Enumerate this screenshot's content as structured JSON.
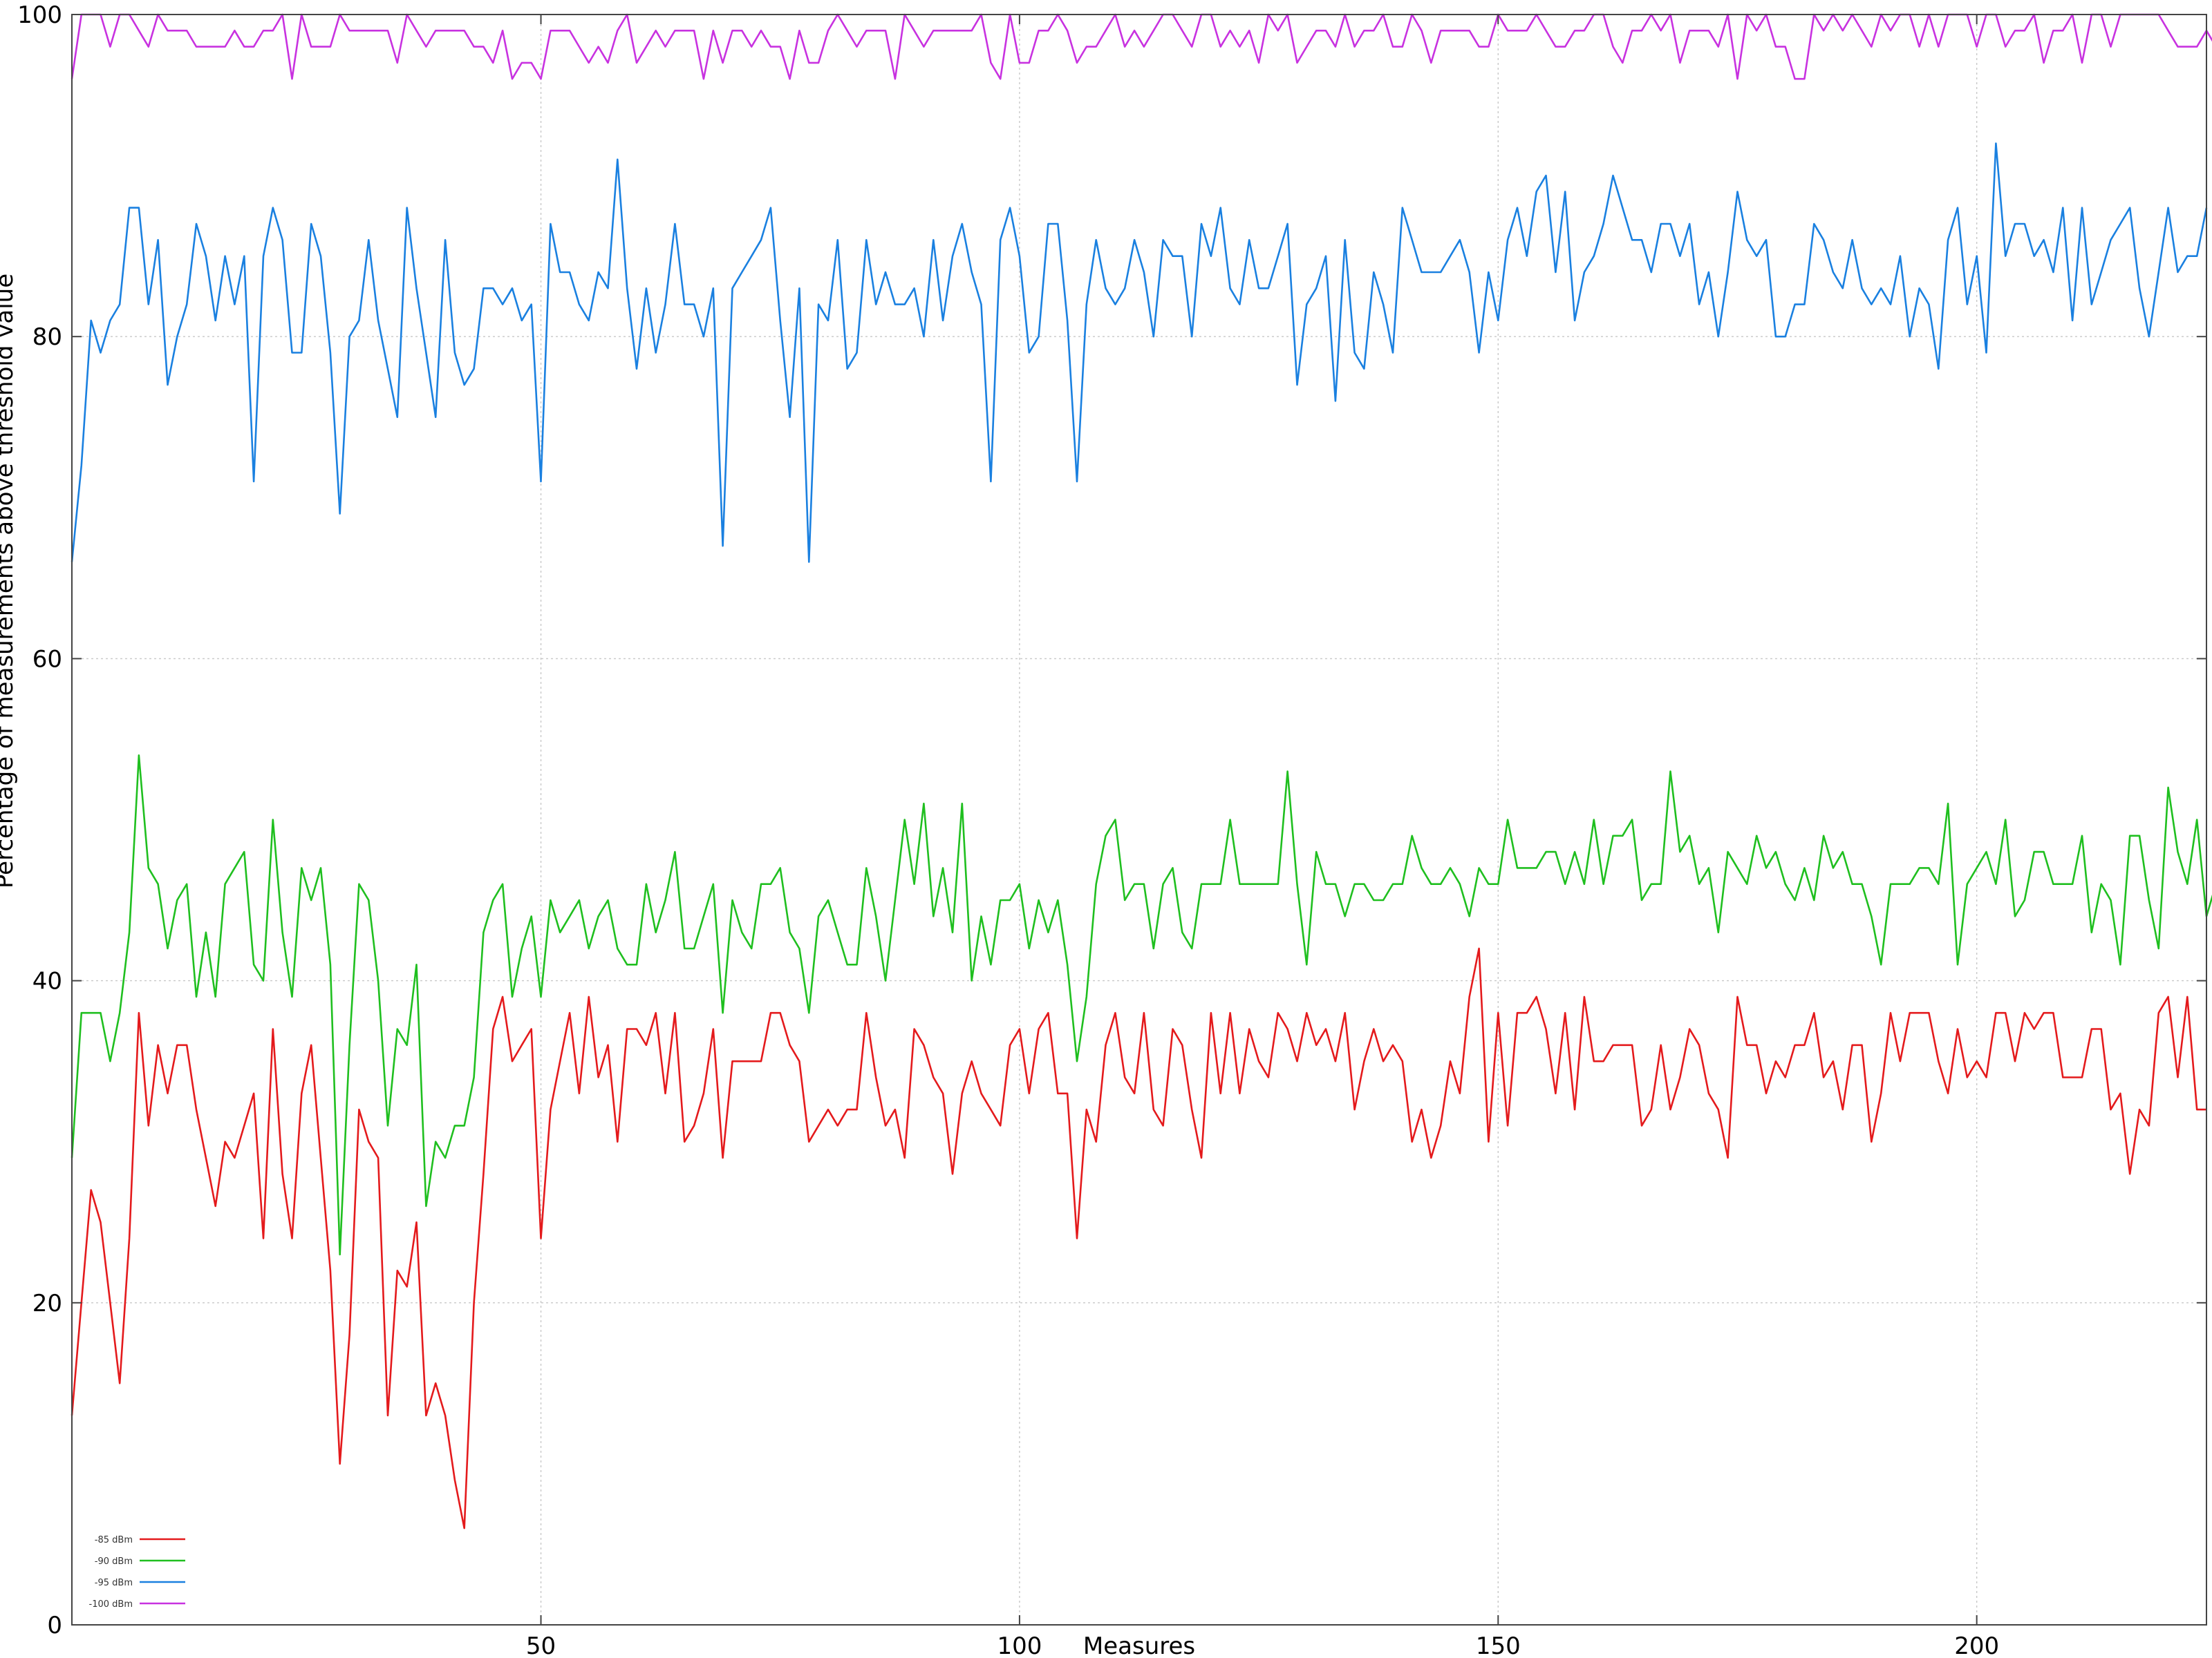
{
  "chart_data": {
    "type": "line",
    "title": "",
    "xlabel": "Measures",
    "ylabel": "Percentage of measurements above threshold value",
    "xlim": [
      1,
      224
    ],
    "ylim": [
      0,
      100
    ],
    "x_ticks": [
      50,
      100,
      150,
      200
    ],
    "y_ticks": [
      0,
      20,
      40,
      60,
      80,
      100
    ],
    "grid": true,
    "legend_position": "bottom-left",
    "series": [
      {
        "name": "-85 dBm",
        "color": "#e41a1c",
        "values": [
          13,
          20,
          27,
          25,
          20,
          15,
          24,
          38,
          31,
          36,
          33,
          36,
          36,
          32,
          29,
          26,
          30,
          29,
          31,
          33,
          24,
          37,
          28,
          24,
          33,
          36,
          29,
          22,
          10,
          18,
          32,
          30,
          29,
          13,
          22,
          21,
          25,
          13,
          15,
          13,
          9,
          6,
          20,
          28,
          37,
          39,
          35,
          36,
          37,
          24,
          32,
          35,
          38,
          33,
          39,
          34,
          36,
          30,
          37,
          37,
          36,
          38,
          33,
          38,
          30,
          31,
          33,
          37,
          29,
          35,
          35,
          35,
          35,
          38,
          38,
          36,
          35,
          30,
          31,
          32,
          31,
          32,
          32,
          38,
          34,
          31,
          32,
          29,
          37,
          36,
          34,
          33,
          28,
          33,
          35,
          33,
          32,
          31,
          36,
          37,
          33,
          37,
          38,
          33,
          33,
          24,
          32,
          30,
          36,
          38,
          34,
          33,
          38,
          32,
          31,
          37,
          36,
          32,
          29,
          38,
          33,
          38,
          33,
          37,
          35,
          34,
          38,
          37,
          35,
          38,
          36,
          37,
          35,
          38,
          32,
          35,
          37,
          35,
          36,
          35,
          30,
          32,
          29,
          31,
          35,
          33,
          39,
          42,
          30,
          38,
          31,
          38,
          38,
          39,
          37,
          33,
          38,
          32,
          39,
          35,
          35,
          36,
          36,
          36,
          31,
          32,
          36,
          32,
          34,
          37,
          36,
          33,
          32,
          29,
          39,
          36,
          36,
          33,
          35,
          34,
          36,
          36,
          38,
          34,
          35,
          32,
          36,
          36,
          30,
          33,
          38,
          35,
          38,
          38,
          38,
          35,
          33,
          37,
          34,
          35,
          34,
          38,
          38,
          35,
          38,
          37,
          38,
          38,
          34,
          34,
          34,
          37,
          37,
          32,
          33,
          28,
          32,
          31,
          38,
          39,
          34,
          39,
          32,
          32
        ]
      },
      {
        "name": "-90 dBm",
        "color": "#1fbf1f",
        "values": [
          29,
          38,
          38,
          38,
          35,
          38,
          43,
          54,
          47,
          46,
          42,
          45,
          46,
          39,
          43,
          39,
          46,
          47,
          48,
          41,
          40,
          50,
          43,
          39,
          47,
          45,
          47,
          41,
          23,
          36,
          46,
          45,
          40,
          31,
          37,
          36,
          41,
          26,
          30,
          29,
          31,
          31,
          34,
          43,
          45,
          46,
          39,
          42,
          44,
          39,
          45,
          43,
          44,
          45,
          42,
          44,
          45,
          42,
          41,
          41,
          46,
          43,
          45,
          48,
          42,
          42,
          44,
          46,
          38,
          45,
          43,
          42,
          46,
          46,
          47,
          43,
          42,
          38,
          44,
          45,
          43,
          41,
          41,
          47,
          44,
          40,
          45,
          50,
          46,
          51,
          44,
          47,
          43,
          51,
          40,
          44,
          41,
          45,
          45,
          46,
          42,
          45,
          43,
          45,
          41,
          35,
          39,
          46,
          49,
          50,
          45,
          46,
          46,
          42,
          46,
          47,
          43,
          42,
          46,
          46,
          46,
          50,
          46,
          46,
          46,
          46,
          46,
          53,
          46,
          41,
          48,
          46,
          46,
          44,
          46,
          46,
          45,
          45,
          46,
          46,
          49,
          47,
          46,
          46,
          47,
          46,
          44,
          47,
          46,
          46,
          50,
          47,
          47,
          47,
          48,
          48,
          46,
          48,
          46,
          50,
          46,
          49,
          49,
          50,
          45,
          46,
          46,
          53,
          48,
          49,
          46,
          47,
          43,
          48,
          47,
          46,
          49,
          47,
          48,
          46,
          45,
          47,
          45,
          49,
          47,
          48,
          46,
          46,
          44,
          41,
          46,
          46,
          46,
          47,
          47,
          46,
          51,
          41,
          46,
          47,
          48,
          46,
          50,
          44,
          45,
          48,
          48,
          46,
          46,
          46,
          49,
          43,
          46,
          45,
          41,
          49,
          49,
          45,
          42,
          52,
          48,
          46,
          50,
          44,
          46
        ]
      },
      {
        "name": "-95 dBm",
        "color": "#1a80e0",
        "values": [
          66,
          72,
          81,
          79,
          81,
          82,
          88,
          88,
          82,
          86,
          77,
          80,
          82,
          87,
          85,
          81,
          85,
          82,
          85,
          71,
          85,
          88,
          86,
          79,
          79,
          87,
          85,
          79,
          69,
          80,
          81,
          86,
          81,
          78,
          75,
          88,
          83,
          79,
          75,
          86,
          79,
          77,
          78,
          83,
          83,
          82,
          83,
          81,
          82,
          71,
          87,
          84,
          84,
          82,
          81,
          84,
          83,
          91,
          83,
          78,
          83,
          79,
          82,
          87,
          82,
          82,
          80,
          83,
          67,
          83,
          84,
          85,
          86,
          88,
          81,
          75,
          83,
          66,
          82,
          81,
          86,
          78,
          79,
          86,
          82,
          84,
          82,
          82,
          83,
          80,
          86,
          81,
          85,
          87,
          84,
          82,
          71,
          86,
          88,
          85,
          79,
          80,
          87,
          87,
          81,
          71,
          82,
          86,
          83,
          82,
          83,
          86,
          84,
          80,
          86,
          85,
          85,
          80,
          87,
          85,
          88,
          83,
          82,
          86,
          83,
          83,
          85,
          87,
          77,
          82,
          83,
          85,
          76,
          86,
          79,
          78,
          84,
          82,
          79,
          88,
          86,
          84,
          84,
          84,
          85,
          86,
          84,
          79,
          84,
          81,
          86,
          88,
          85,
          89,
          90,
          84,
          89,
          81,
          84,
          85,
          87,
          90,
          88,
          86,
          86,
          84,
          87,
          87,
          85,
          87,
          82,
          84,
          80,
          84,
          89,
          86,
          85,
          86,
          80,
          80,
          82,
          82,
          87,
          86,
          84,
          83,
          86,
          83,
          82,
          83,
          82,
          85,
          80,
          83,
          82,
          78,
          86,
          88,
          82,
          85,
          79,
          92,
          85,
          87,
          87,
          85,
          86,
          84,
          88,
          81,
          88,
          82,
          84,
          86,
          87,
          88,
          83,
          80,
          84,
          88,
          84,
          85,
          85,
          88
        ]
      },
      {
        "name": "-100 dBm",
        "color": "#c832e0",
        "values": [
          96,
          100,
          100,
          100,
          98,
          100,
          100,
          99,
          98,
          100,
          99,
          99,
          99,
          98,
          98,
          98,
          98,
          99,
          98,
          98,
          99,
          99,
          100,
          96,
          100,
          98,
          98,
          98,
          100,
          99,
          99,
          99,
          99,
          99,
          97,
          100,
          99,
          98,
          99,
          99,
          99,
          99,
          98,
          98,
          97,
          99,
          96,
          97,
          97,
          96,
          99,
          99,
          99,
          98,
          97,
          98,
          97,
          99,
          100,
          97,
          98,
          99,
          98,
          99,
          99,
          99,
          96,
          99,
          97,
          99,
          99,
          98,
          99,
          98,
          98,
          96,
          99,
          97,
          97,
          99,
          100,
          99,
          98,
          99,
          99,
          99,
          96,
          100,
          99,
          98,
          99,
          99,
          99,
          99,
          99,
          100,
          97,
          96,
          100,
          97,
          97,
          99,
          99,
          100,
          99,
          97,
          98,
          98,
          99,
          100,
          98,
          99,
          98,
          99,
          100,
          100,
          99,
          98,
          100,
          100,
          98,
          99,
          98,
          99,
          97,
          100,
          99,
          100,
          97,
          98,
          99,
          99,
          98,
          100,
          98,
          99,
          99,
          100,
          98,
          98,
          100,
          99,
          97,
          99,
          99,
          99,
          99,
          98,
          98,
          100,
          99,
          99,
          99,
          100,
          99,
          98,
          98,
          99,
          99,
          100,
          100,
          98,
          97,
          99,
          99,
          100,
          99,
          100,
          97,
          99,
          99,
          99,
          98,
          100,
          96,
          100,
          99,
          100,
          98,
          98,
          96,
          96,
          100,
          99,
          100,
          99,
          100,
          99,
          98,
          100,
          99,
          100,
          100,
          98,
          100,
          98,
          100,
          100,
          100,
          98,
          100,
          100,
          98,
          99,
          99,
          100,
          97,
          99,
          99,
          100,
          97,
          100,
          100,
          98,
          100,
          100,
          100,
          100,
          100,
          99,
          98,
          98,
          98,
          99,
          98,
          98
        ]
      }
    ]
  }
}
